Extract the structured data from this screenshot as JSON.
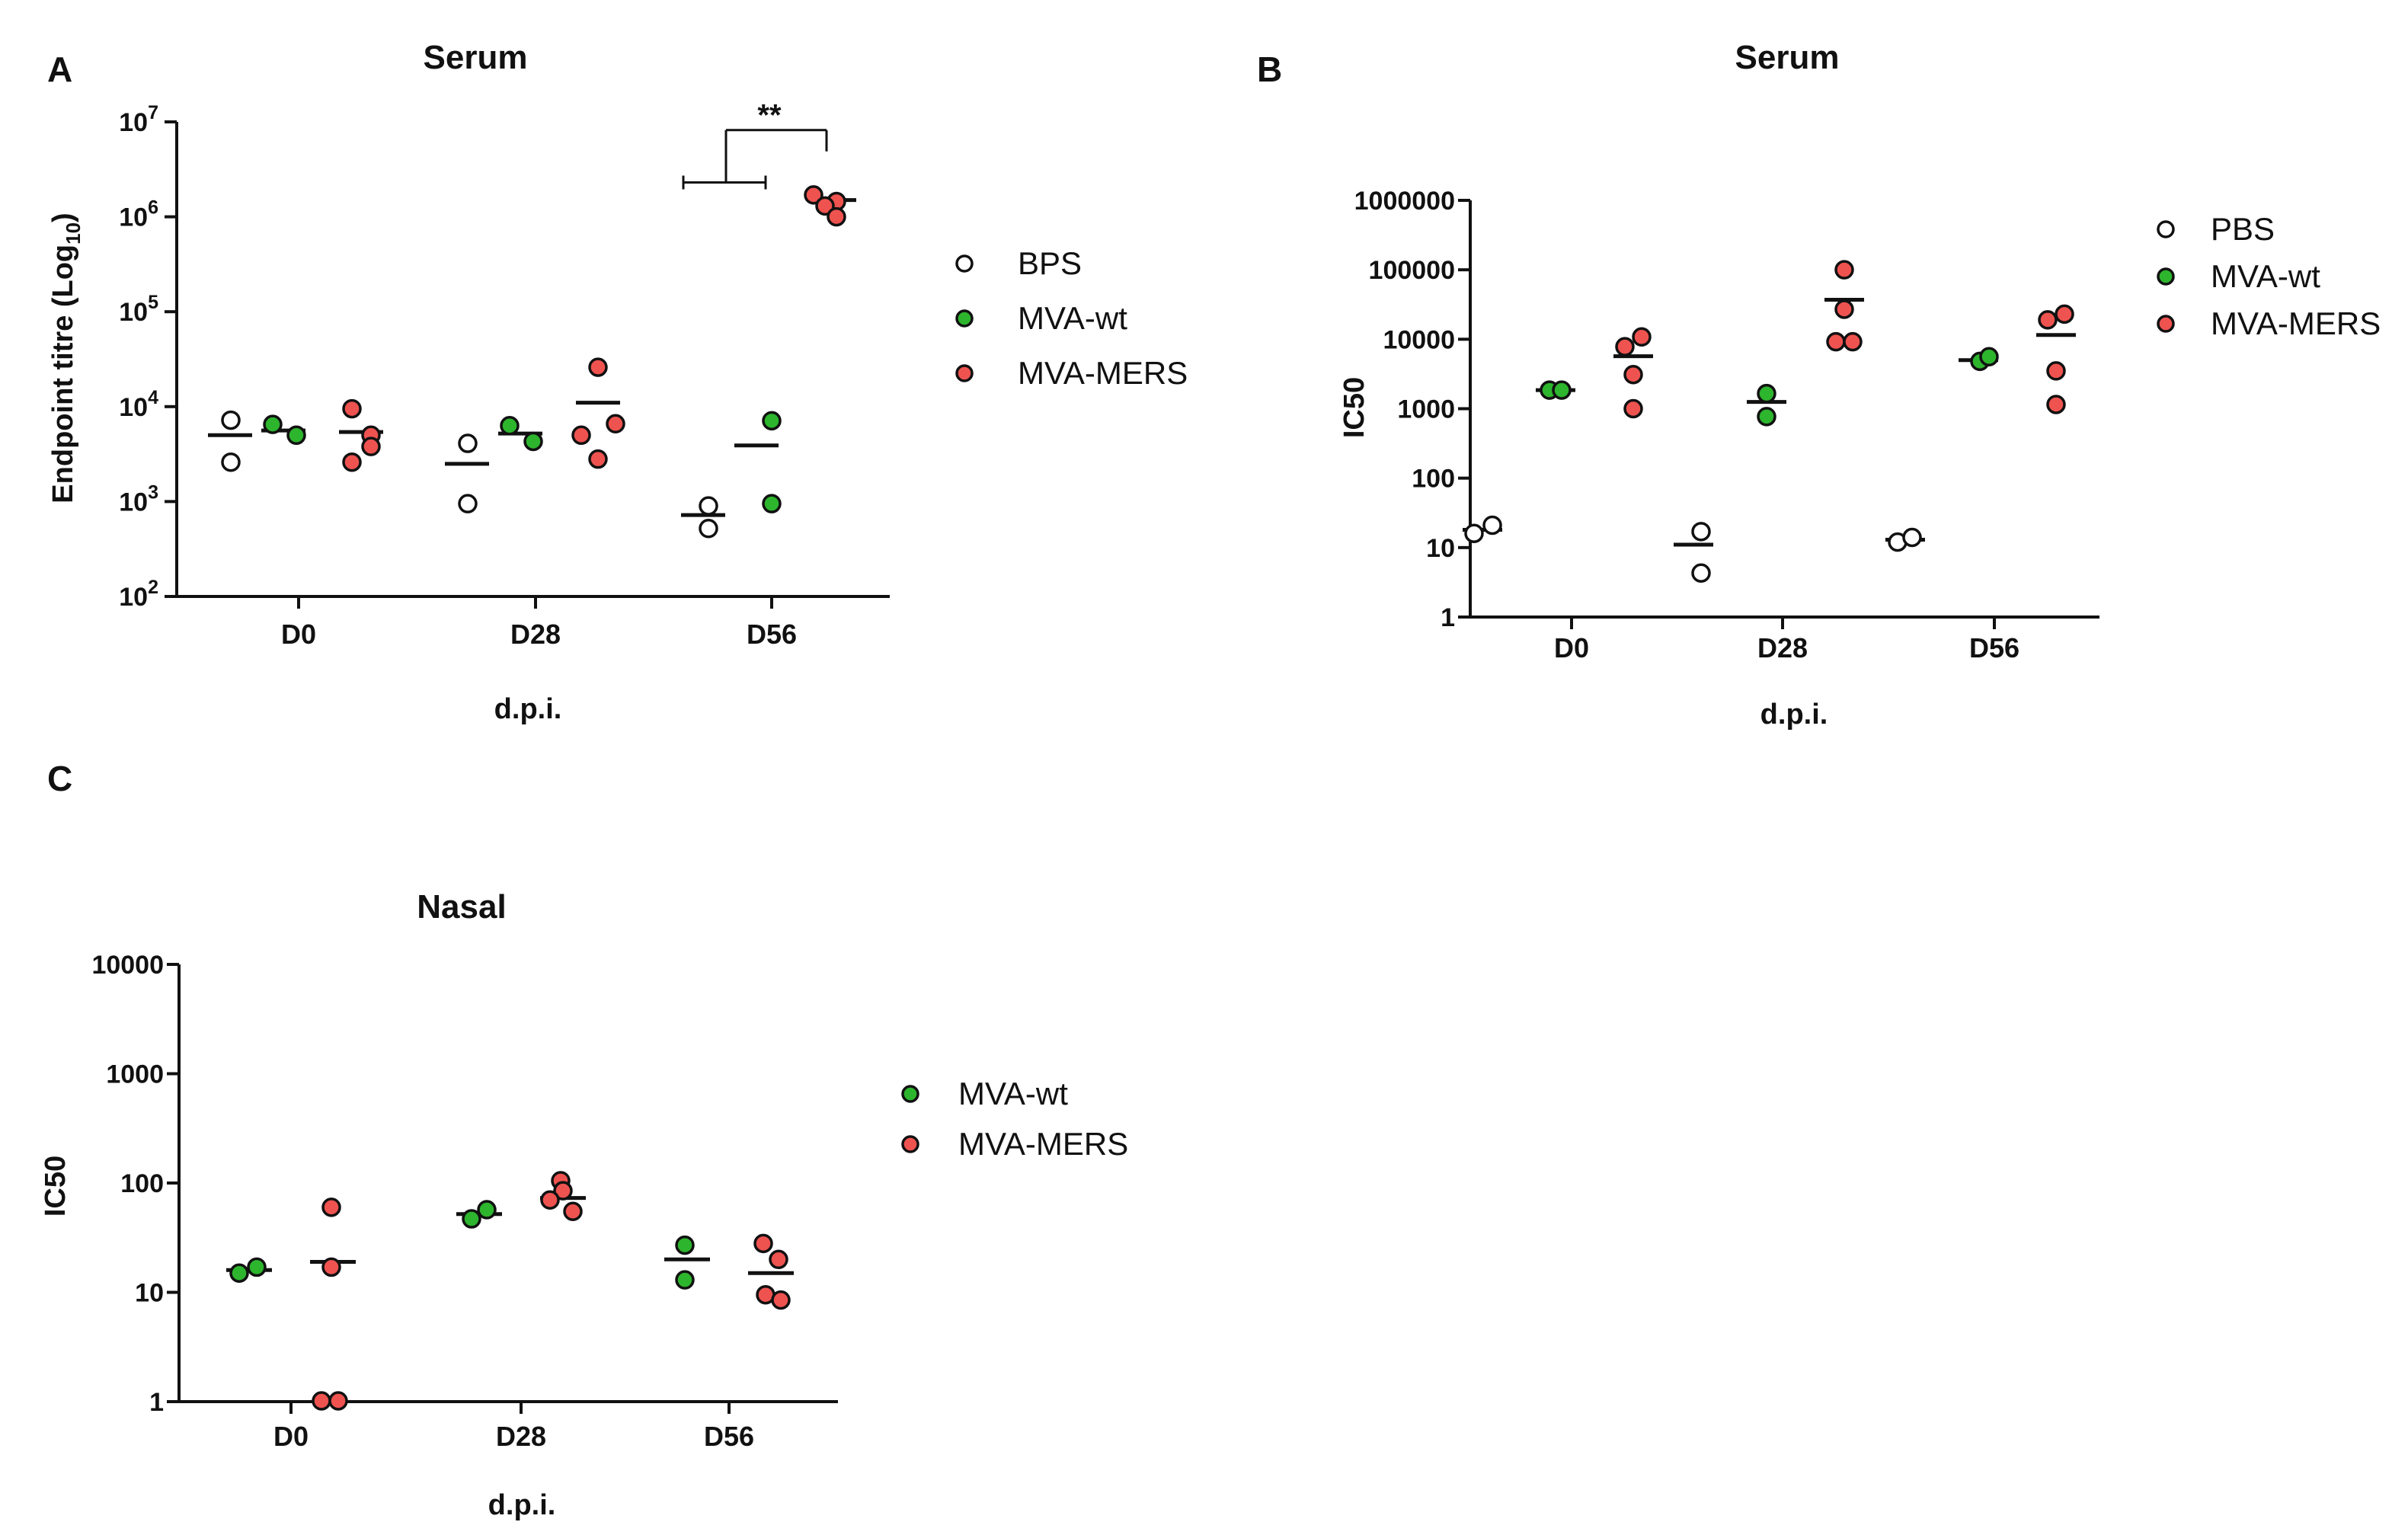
{
  "colors": {
    "BPS": "#ffffff",
    "PBS": "#ffffff",
    "MVA-wt": "#2db52d",
    "MVA-MERS": "#ef5350"
  },
  "chart_data": [
    {
      "id": "A",
      "panel_label": "A",
      "type": "scatter",
      "title": "Serum",
      "xlabel": "d.p.i.",
      "ylabel": "Endpoint titre (Log10)",
      "ylabel_main": "Endpoint titre (Log",
      "ylabel_sub": "10",
      "ylabel_close": ")",
      "yscale": "log",
      "ylim": [
        100,
        10000000
      ],
      "yticks": [
        {
          "value": 100,
          "base": "10",
          "exp": "2"
        },
        {
          "value": 1000,
          "base": "10",
          "exp": "3"
        },
        {
          "value": 10000,
          "base": "10",
          "exp": "4"
        },
        {
          "value": 100000,
          "base": "10",
          "exp": "5"
        },
        {
          "value": 1000000,
          "base": "10",
          "exp": "6"
        },
        {
          "value": 10000000,
          "base": "10",
          "exp": "7"
        }
      ],
      "categories": [
        "D0",
        "D28",
        "D56"
      ],
      "legend": [
        "BPS",
        "MVA-wt",
        "MVA-MERS"
      ],
      "series": [
        {
          "name": "BPS",
          "points": [
            [
              7200,
              2600
            ],
            [
              4100,
              950
            ],
            [
              900,
              520
            ]
          ],
          "means": [
            5000,
            2500,
            720
          ]
        },
        {
          "name": "MVA-wt",
          "points": [
            [
              5000,
              6500
            ],
            [
              4300,
              6300
            ],
            [
              7100,
              950
            ]
          ],
          "means": [
            5600,
            5200,
            3900
          ]
        },
        {
          "name": "MVA-MERS",
          "points": [
            [
              9500,
              5000,
              2600,
              3800
            ],
            [
              26000,
              6600,
              2800,
              5000
            ],
            [
              1700000,
              1450000,
              1300000,
              1000000
            ]
          ],
          "means": [
            5400,
            11000,
            1500000
          ]
        }
      ],
      "annotation": {
        "text": "**",
        "from": {
          "category": "D56",
          "series": "BPS"
        },
        "to": {
          "category": "D56",
          "series": "MVA-MERS"
        },
        "bracket_value": 2300000,
        "top_value": 8200000
      }
    },
    {
      "id": "B",
      "panel_label": "B",
      "type": "scatter",
      "title": "Serum",
      "xlabel": "d.p.i.",
      "ylabel": "IC50",
      "yscale": "log",
      "ylim": [
        1,
        1000000
      ],
      "yticks": [
        {
          "value": 1,
          "label": "1"
        },
        {
          "value": 10,
          "label": "10"
        },
        {
          "value": 100,
          "label": "100"
        },
        {
          "value": 1000,
          "label": "1000"
        },
        {
          "value": 10000,
          "label": "10000"
        },
        {
          "value": 100000,
          "label": "100000"
        },
        {
          "value": 1000000,
          "label": "1000000"
        }
      ],
      "categories": [
        "D0",
        "D28",
        "D56"
      ],
      "legend": [
        "PBS",
        "MVA-wt",
        "MVA-MERS"
      ],
      "series": [
        {
          "name": "PBS",
          "points": [
            [
              16,
              21
            ],
            [
              17,
              4.3
            ],
            [
              12,
              14
            ]
          ],
          "means": [
            18,
            11,
            13
          ]
        },
        {
          "name": "MVA-wt",
          "points": [
            [
              1850,
              1850
            ],
            [
              1650,
              770
            ],
            [
              4800,
              5600
            ]
          ],
          "means": [
            1850,
            1250,
            5000
          ]
        },
        {
          "name": "MVA-MERS",
          "points": [
            [
              7800,
              10800,
              3100,
              1000
            ],
            [
              100000,
              27000,
              9200,
              9200
            ],
            [
              19000,
              23000,
              3500,
              1150
            ]
          ],
          "means": [
            5700,
            37000,
            11500
          ]
        }
      ]
    },
    {
      "id": "C",
      "panel_label": "C",
      "type": "scatter",
      "title": "Nasal",
      "xlabel": "d.p.i.",
      "ylabel": "IC50",
      "yscale": "log",
      "ylim": [
        1,
        10000
      ],
      "yticks": [
        {
          "value": 1,
          "label": "1"
        },
        {
          "value": 10,
          "label": "10"
        },
        {
          "value": 100,
          "label": "100"
        },
        {
          "value": 1000,
          "label": "1000"
        },
        {
          "value": 10000,
          "label": "10000"
        }
      ],
      "categories": [
        "D0",
        "D28",
        "D56"
      ],
      "legend": [
        "MVA-wt",
        "MVA-MERS"
      ],
      "series": [
        {
          "name": "MVA-wt",
          "points": [
            [
              15,
              17
            ],
            [
              47,
              57
            ],
            [
              27,
              13
            ]
          ],
          "means": [
            16,
            52,
            20
          ]
        },
        {
          "name": "MVA-MERS",
          "points": [
            [
              60,
              17,
              1,
              1
            ],
            [
              105,
              85,
              70,
              55
            ],
            [
              28,
              20,
              9.5,
              8.5
            ]
          ],
          "means": [
            19,
            73,
            15
          ]
        }
      ]
    }
  ]
}
